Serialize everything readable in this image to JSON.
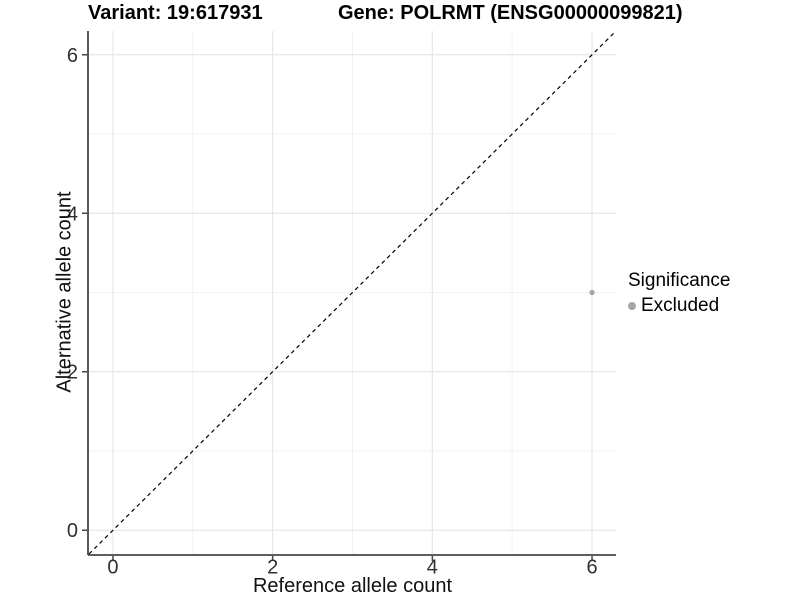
{
  "title": {
    "variant": "Variant: 19:617931",
    "gene": "Gene: POLRMT (ENSG00000099821)"
  },
  "chart_data": {
    "type": "scatter",
    "xlabel": "Reference allele count",
    "ylabel": "Alternative allele count",
    "xlim": [
      -0.3,
      6.3
    ],
    "ylim": [
      -0.3,
      6.3
    ],
    "xticks": [
      0,
      2,
      4,
      6
    ],
    "yticks": [
      0,
      2,
      4,
      6
    ],
    "xticks_minor": [
      1,
      3,
      5
    ],
    "yticks_minor": [
      1,
      3,
      5
    ],
    "grid": true,
    "points": [
      {
        "x": 6,
        "y": 3,
        "significance": "Excluded"
      }
    ],
    "reference_line": {
      "slope": 1,
      "intercept": 0,
      "style": "dashed"
    },
    "legend": {
      "title": "Significance",
      "position": "right",
      "items": [
        {
          "label": "Excluded",
          "color": "#a6a6a6"
        }
      ]
    }
  },
  "colors": {
    "background": "#ffffff",
    "grid_major": "#e7e7e7",
    "grid_minor": "#f2f2f2",
    "axis_line": "#474747",
    "tick_text": "#303030",
    "title_text": "#000000",
    "point": "#a6a6a6",
    "ref_line": "#000000"
  }
}
